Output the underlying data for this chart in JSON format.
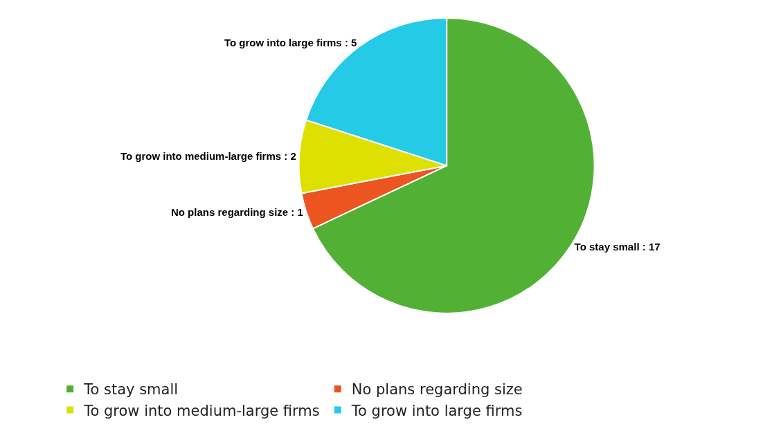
{
  "chart_data": {
    "type": "pie",
    "categories": [
      "To stay small",
      "No plans regarding size",
      "To grow into medium-large firms",
      "To grow into large firms"
    ],
    "values": [
      17,
      1,
      2,
      5
    ],
    "colors": [
      "#52b135",
      "#ec5420",
      "#dde000",
      "#25cae6"
    ],
    "value_labels": [
      "To stay small : 17",
      "No plans regarding size : 1",
      "To grow into medium-large firms : 2",
      "To grow into large firms : 5"
    ],
    "legend": "bottom"
  }
}
